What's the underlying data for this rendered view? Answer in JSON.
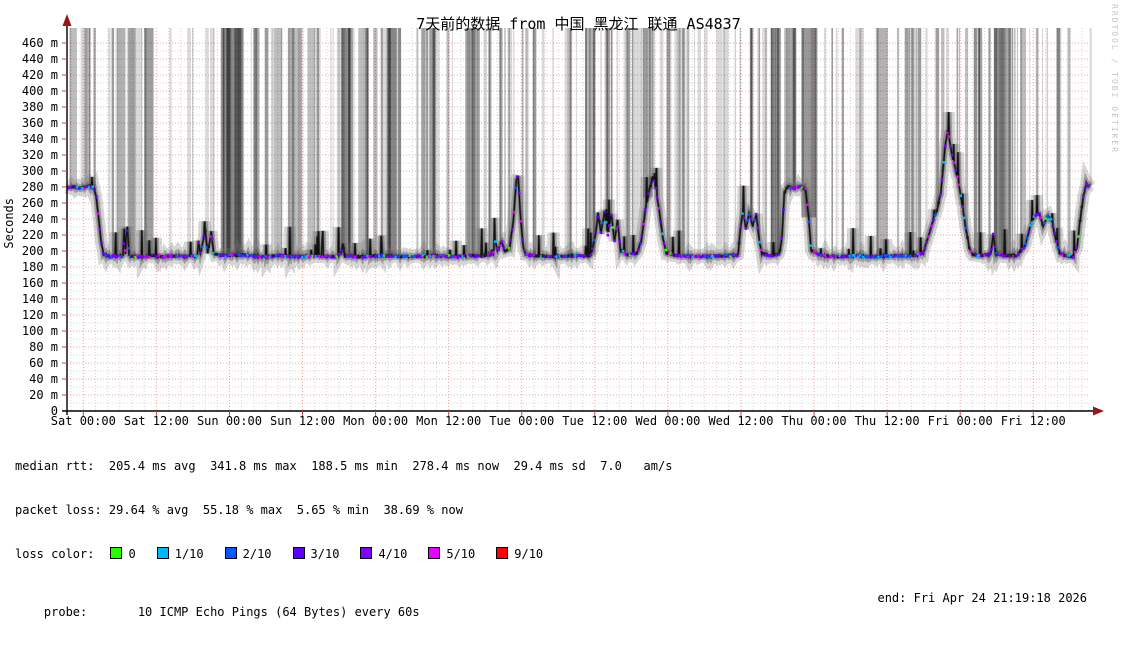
{
  "watermark": "RRDTOOL / TOBI OETIKER",
  "chart_data": {
    "type": "line",
    "title": "7天前的数据 from 中国 黑龙江 联通 AS4837",
    "ylabel": "Seconds",
    "xlabel": "",
    "ylim": [
      0,
      470
    ],
    "y_unit": "ms",
    "y_major_step_ms": 20,
    "y_minor_step_ms": 10,
    "y_tick_labels": [
      "0",
      "20 m",
      "40 m",
      "60 m",
      "80 m",
      "100 m",
      "120 m",
      "140 m",
      "160 m",
      "180 m",
      "200 m",
      "220 m",
      "240 m",
      "260 m",
      "280 m",
      "300 m",
      "320 m",
      "340 m",
      "360 m",
      "380 m",
      "400 m",
      "420 m",
      "440 m",
      "460 m"
    ],
    "hours_total": 168,
    "x_first_tick_hour": 2.68,
    "x_tick_interval_hours": 12,
    "x_minor_interval_hours": 2,
    "x_tick_labels": [
      "Sat 00:00",
      "Sat 12:00",
      "Sun 00:00",
      "Sun 12:00",
      "Mon 00:00",
      "Mon 12:00",
      "Tue 00:00",
      "Tue 12:00",
      "Wed 00:00",
      "Wed 12:00",
      "Thu 00:00",
      "Thu 12:00",
      "Fri 00:00",
      "Fri 12:00"
    ],
    "grid": {
      "major_color": "#f0a0a0",
      "minor_color": "#d4d4d4",
      "axis_color": "#000000",
      "arrow_color": "#9a1515",
      "tick_color": "#cc4444"
    },
    "median_rtt_ms_series": [
      [
        0,
        279
      ],
      [
        1.2,
        280
      ],
      [
        2.5,
        279
      ],
      [
        3.6,
        281
      ],
      [
        4.4,
        280
      ],
      [
        4.8,
        268
      ],
      [
        5.2,
        240
      ],
      [
        5.6,
        212
      ],
      [
        6,
        196
      ],
      [
        7,
        193
      ],
      [
        8.5,
        194
      ],
      [
        9.2,
        194
      ],
      [
        9.4,
        228
      ],
      [
        9.6,
        196
      ],
      [
        9.9,
        231
      ],
      [
        10.2,
        194
      ],
      [
        12,
        193
      ],
      [
        14,
        194
      ],
      [
        16,
        193
      ],
      [
        18,
        194
      ],
      [
        20,
        193
      ],
      [
        21.4,
        194
      ],
      [
        21.6,
        212
      ],
      [
        21.9,
        196
      ],
      [
        22.7,
        226
      ],
      [
        23.1,
        197
      ],
      [
        23.7,
        224
      ],
      [
        24.1,
        196
      ],
      [
        26,
        194
      ],
      [
        29,
        195
      ],
      [
        32,
        193
      ],
      [
        35,
        194
      ],
      [
        38,
        193
      ],
      [
        41,
        194
      ],
      [
        44,
        193
      ],
      [
        45,
        196
      ],
      [
        45.3,
        209
      ],
      [
        45.6,
        194
      ],
      [
        48,
        193
      ],
      [
        52,
        194
      ],
      [
        56,
        193
      ],
      [
        60,
        194
      ],
      [
        64,
        193
      ],
      [
        68,
        194
      ],
      [
        70,
        196
      ],
      [
        70.3,
        214
      ],
      [
        70.7,
        200
      ],
      [
        71.4,
        212
      ],
      [
        71.9,
        199
      ],
      [
        72.7,
        204
      ],
      [
        73.3,
        238
      ],
      [
        73.8,
        290
      ],
      [
        74.1,
        293
      ],
      [
        74.5,
        240
      ],
      [
        74.9,
        206
      ],
      [
        75.3,
        196
      ],
      [
        77,
        194
      ],
      [
        80,
        193
      ],
      [
        83,
        194
      ],
      [
        86,
        194
      ],
      [
        86.8,
        220
      ],
      [
        87.2,
        248
      ],
      [
        87.7,
        222
      ],
      [
        88.3,
        250
      ],
      [
        88.8,
        220
      ],
      [
        89.4,
        246
      ],
      [
        89.9,
        212
      ],
      [
        90.4,
        238
      ],
      [
        90.9,
        201
      ],
      [
        92,
        195
      ],
      [
        93.6,
        197
      ],
      [
        94.3,
        212
      ],
      [
        95,
        252
      ],
      [
        95.7,
        278
      ],
      [
        96.2,
        293
      ],
      [
        96.7,
        278
      ],
      [
        97.3,
        248
      ],
      [
        97.9,
        214
      ],
      [
        98.4,
        198
      ],
      [
        100,
        194
      ],
      [
        104,
        193
      ],
      [
        108,
        194
      ],
      [
        110.2,
        195
      ],
      [
        110.6,
        228
      ],
      [
        111,
        250
      ],
      [
        111.5,
        228
      ],
      [
        112,
        248
      ],
      [
        112.6,
        232
      ],
      [
        113.2,
        246
      ],
      [
        113.7,
        212
      ],
      [
        114.1,
        197
      ],
      [
        115.5,
        194
      ],
      [
        117,
        197
      ],
      [
        117.4,
        216
      ],
      [
        117.8,
        272
      ],
      [
        118.3,
        280
      ],
      [
        119.5,
        278
      ],
      [
        120.5,
        281
      ],
      [
        121.3,
        277
      ],
      [
        121.8,
        242
      ],
      [
        122.2,
        200
      ],
      [
        124,
        194
      ],
      [
        127,
        193
      ],
      [
        130,
        194
      ],
      [
        133,
        193
      ],
      [
        136,
        194
      ],
      [
        139,
        194
      ],
      [
        140.6,
        197
      ],
      [
        141.3,
        215
      ],
      [
        142,
        232
      ],
      [
        142.8,
        250
      ],
      [
        143.5,
        272
      ],
      [
        144.2,
        330
      ],
      [
        144.6,
        350
      ],
      [
        144.9,
        341
      ],
      [
        145.3,
        321
      ],
      [
        145.8,
        306
      ],
      [
        146.4,
        286
      ],
      [
        147,
        258
      ],
      [
        147.6,
        228
      ],
      [
        148.2,
        204
      ],
      [
        148.7,
        196
      ],
      [
        150,
        194
      ],
      [
        151.7,
        196
      ],
      [
        152.1,
        221
      ],
      [
        152.5,
        197
      ],
      [
        154,
        194
      ],
      [
        156,
        194
      ],
      [
        157.3,
        206
      ],
      [
        158,
        226
      ],
      [
        158.8,
        242
      ],
      [
        159.6,
        248
      ],
      [
        160.3,
        232
      ],
      [
        161,
        244
      ],
      [
        161.7,
        238
      ],
      [
        162.4,
        214
      ],
      [
        163,
        198
      ],
      [
        164,
        194
      ],
      [
        165.3,
        193
      ],
      [
        165.9,
        206
      ],
      [
        166.4,
        240
      ],
      [
        166.9,
        268
      ],
      [
        167.4,
        284
      ],
      [
        167.7,
        280
      ],
      [
        168,
        282
      ]
    ],
    "loss_band_render": {
      "seed": 1337,
      "narrow_count": 240,
      "wide_bands": [
        [
          8.2,
          1.4,
          0.3
        ],
        [
          25.6,
          3.4,
          0.45
        ],
        [
          36.8,
          1.8,
          0.25
        ],
        [
          45.1,
          1.6,
          0.4
        ],
        [
          65.4,
          2.4,
          0.35
        ],
        [
          85.2,
          1.6,
          0.3
        ],
        [
          94.6,
          1.6,
          0.3
        ],
        [
          120.6,
          2.4,
          0.4
        ],
        [
          133,
          1.8,
          0.3
        ],
        [
          152.2,
          2.8,
          0.35
        ]
      ],
      "blue_zones": [
        [
          127.5,
          138.5
        ]
      ]
    },
    "loss_dot_colors": {
      "0": "#26ff00",
      "1/10": "#00b8ff",
      "2/10": "#0059ff",
      "3/10": "#5e00ff",
      "4/10": "#7e00ff",
      "5/10": "#e600ff",
      "9/10": "#ff0000"
    }
  },
  "legend": {
    "label": "loss color:",
    "items": [
      {
        "label": "0",
        "color": "#26ff00"
      },
      {
        "label": "1/10",
        "color": "#00b8ff"
      },
      {
        "label": "2/10",
        "color": "#0059ff"
      },
      {
        "label": "3/10",
        "color": "#5e00ff"
      },
      {
        "label": "4/10",
        "color": "#7e00ff"
      },
      {
        "label": "5/10",
        "color": "#e600ff"
      },
      {
        "label": "9/10",
        "color": "#ff0000"
      }
    ]
  },
  "stats": {
    "median_rtt_line": "median rtt:  205.4 ms avg  341.8 ms max  188.5 ms min  278.4 ms now  29.4 ms sd  7.0   am/s",
    "packet_loss_line": "packet loss: 29.64 % avg  55.18 % max  5.65 % min  38.69 % now",
    "probe_line": "probe:       10 ICMP Echo Pings (64 Bytes) every 60s",
    "end_line": "end: Fri Apr 24 21:19:18 2026"
  }
}
